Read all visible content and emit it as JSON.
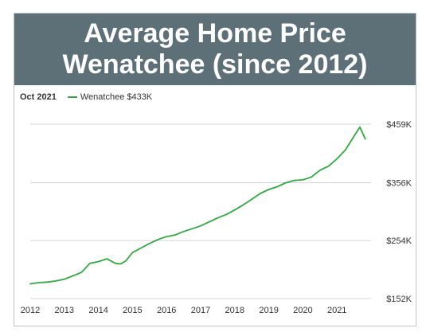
{
  "header": {
    "title_line1": "Average Home Price",
    "title_line2": "Wenatchee (since 2012)"
  },
  "legend": {
    "date": "Oct 2021",
    "series_label": "Wenatchee $433K"
  },
  "colors": {
    "header_bg": "#5d7078",
    "line": "#2eaa3f",
    "grid": "#d3d6d8"
  },
  "chart_data": {
    "type": "line",
    "title": "Average Home Price Wenatchee (since 2012)",
    "xlabel": "",
    "ylabel": "",
    "x_tick_labels": [
      "2012",
      "2013",
      "2014",
      "2015",
      "2016",
      "2017",
      "2018",
      "2019",
      "2020",
      "2021"
    ],
    "y_ticks": [
      152,
      254,
      356,
      459
    ],
    "y_tick_labels": [
      "$152K",
      "$254K",
      "$356K",
      "$459K"
    ],
    "xlim": [
      2012,
      2022
    ],
    "ylim": [
      152,
      459
    ],
    "grid": "horizontal",
    "legend_position": "top-left",
    "series": [
      {
        "name": "Wenatchee",
        "color": "#2eaa3f",
        "x": [
          2012.0,
          2012.25,
          2012.5,
          2012.75,
          2013.0,
          2013.25,
          2013.5,
          2013.75,
          2014.0,
          2014.25,
          2014.5,
          2014.65,
          2014.8,
          2015.0,
          2015.25,
          2015.5,
          2015.75,
          2016.0,
          2016.25,
          2016.5,
          2016.75,
          2017.0,
          2017.25,
          2017.5,
          2017.75,
          2018.0,
          2018.25,
          2018.5,
          2018.75,
          2019.0,
          2019.25,
          2019.5,
          2019.75,
          2020.0,
          2020.25,
          2020.5,
          2020.75,
          2021.0,
          2021.25,
          2021.5,
          2021.67,
          2021.83
        ],
        "values": [
          178,
          180,
          181,
          183,
          186,
          192,
          198,
          214,
          217,
          222,
          214,
          213,
          218,
          233,
          241,
          249,
          256,
          261,
          264,
          270,
          275,
          280,
          287,
          294,
          300,
          308,
          317,
          327,
          337,
          344,
          349,
          356,
          360,
          361,
          366,
          378,
          385,
          398,
          414,
          438,
          454,
          433
        ]
      }
    ]
  }
}
